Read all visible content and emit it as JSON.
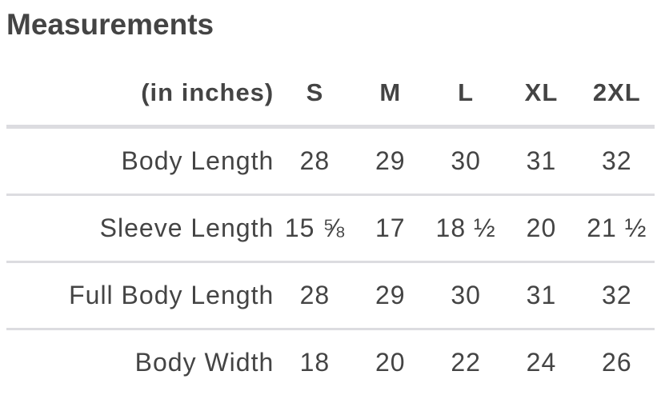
{
  "title": "Measurements",
  "table": {
    "unit_header": "(in inches)",
    "sizes": [
      "S",
      "M",
      "L",
      "XL",
      "2XL"
    ],
    "rows": [
      {
        "label": "Body Length",
        "values": [
          "28",
          "29",
          "30",
          "31",
          "32"
        ]
      },
      {
        "label": "Sleeve Length",
        "values": [
          "15 ⅝",
          "17",
          "18 ½",
          "20",
          "21 ½"
        ]
      },
      {
        "label": "Full Body Length",
        "values": [
          "28",
          "29",
          "30",
          "31",
          "32"
        ]
      },
      {
        "label": "Body Width",
        "values": [
          "18",
          "20",
          "22",
          "24",
          "26"
        ]
      }
    ]
  }
}
